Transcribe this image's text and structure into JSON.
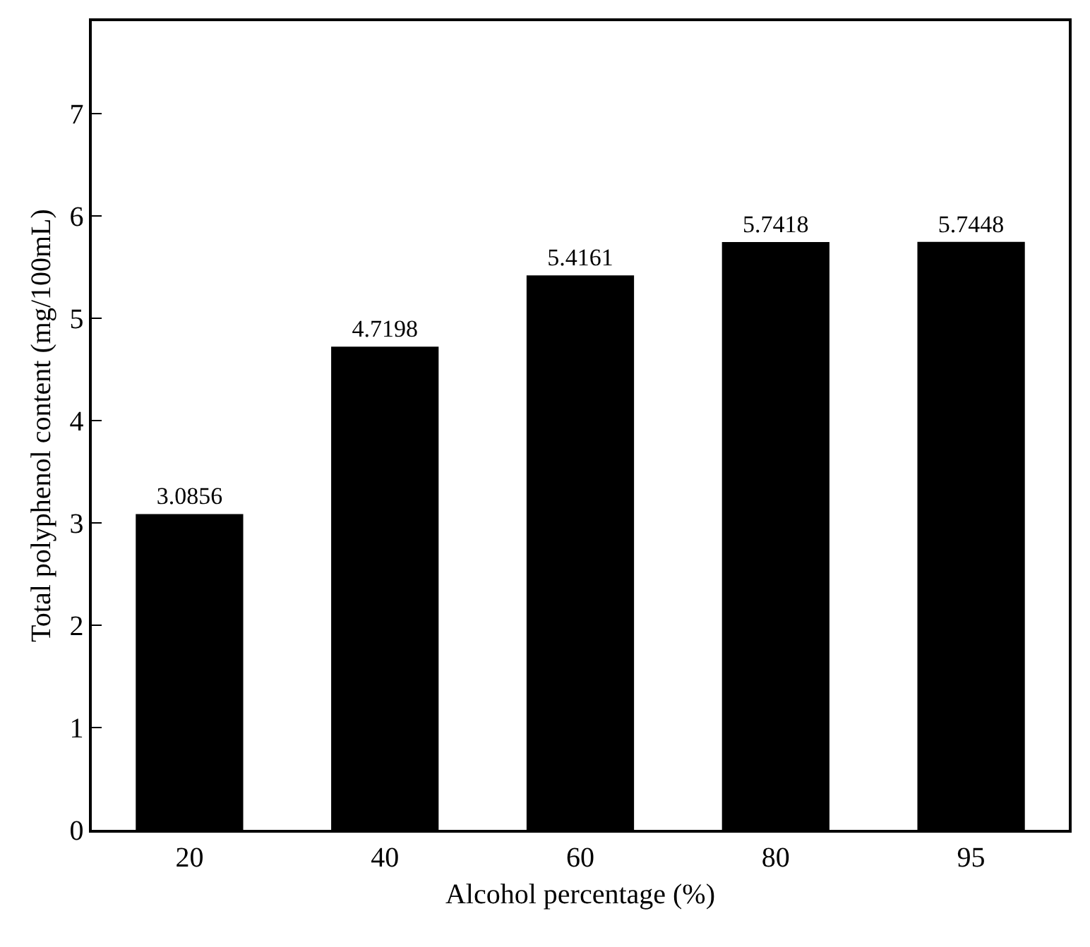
{
  "chart_data": {
    "type": "bar",
    "xlabel": "Alcohol percentage (%)",
    "ylabel": "Total polyphenol content (mg/100mL)",
    "categories": [
      "20",
      "40",
      "60",
      "80",
      "95"
    ],
    "values": [
      3.0856,
      4.7198,
      5.4161,
      5.7418,
      5.7448
    ],
    "color": "#000000",
    "data_labels": true,
    "grid": false,
    "ylim": [
      0,
      7.9
    ],
    "yticks": [
      0,
      1,
      2,
      3,
      4,
      5,
      6,
      7
    ]
  }
}
